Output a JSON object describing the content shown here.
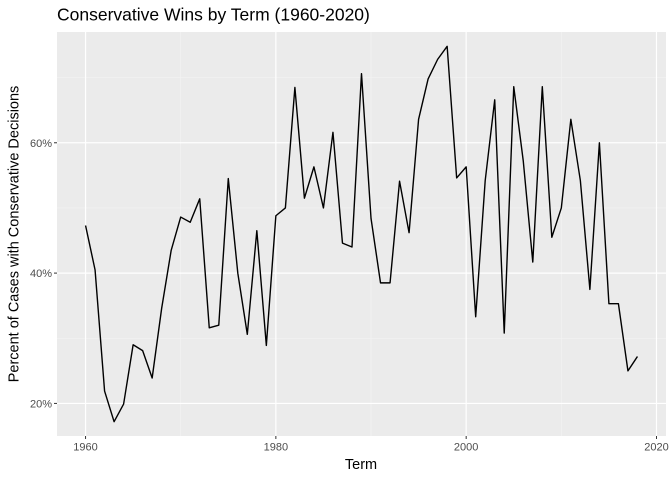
{
  "chart_data": {
    "type": "line",
    "title": "Conservative Wins by Term (1960-2020)",
    "xlabel": "Term",
    "ylabel": "Percent of Cases with Conservative Decisions",
    "xlim": [
      1957,
      2021
    ],
    "ylim": [
      0.15,
      0.77
    ],
    "x_ticks": [
      1960,
      1980,
      2000,
      2020
    ],
    "x_tick_labels": [
      "1960",
      "1980",
      "2000",
      "2020"
    ],
    "y_ticks": [
      0.2,
      0.4,
      0.6
    ],
    "y_tick_labels": [
      "20%",
      "40%",
      "60%"
    ],
    "grid": true,
    "legend": "none",
    "colors": {
      "panel_background": "#ebebeb",
      "grid_major": "#ffffff",
      "grid_minor": "#f4f4f4",
      "line": "#000000"
    },
    "series": [
      {
        "x": [
          1960,
          1961,
          1962,
          1963,
          1964,
          1965,
          1966,
          1967,
          1968,
          1969,
          1970,
          1971,
          1972,
          1973,
          1974,
          1975,
          1976,
          1977,
          1978,
          1979,
          1980,
          1981,
          1982,
          1983,
          1984,
          1985,
          1986,
          1987,
          1988,
          1989,
          1990,
          1991,
          1992,
          1993,
          1994,
          1995,
          1996,
          1997,
          1998,
          1999,
          2000,
          2001,
          2002,
          2003,
          2004,
          2005,
          2006,
          2007,
          2008,
          2009,
          2010,
          2011,
          2012,
          2013,
          2014,
          2015,
          2016,
          2017,
          2018
        ],
        "values": [
          0.473,
          0.405,
          0.219,
          0.172,
          0.199,
          0.29,
          0.281,
          0.239,
          0.346,
          0.435,
          0.486,
          0.478,
          0.514,
          0.316,
          0.32,
          0.545,
          0.4,
          0.306,
          0.465,
          0.289,
          0.488,
          0.5,
          0.685,
          0.515,
          0.563,
          0.5,
          0.616,
          0.446,
          0.44,
          0.706,
          0.484,
          0.385,
          0.385,
          0.541,
          0.462,
          0.636,
          0.698,
          0.728,
          0.748,
          0.546,
          0.563,
          0.333,
          0.542,
          0.666,
          0.308,
          0.686,
          0.572,
          0.417,
          0.686,
          0.455,
          0.5,
          0.636,
          0.542,
          0.375,
          0.6,
          0.353,
          0.353,
          0.25,
          0.272
        ]
      }
    ]
  }
}
